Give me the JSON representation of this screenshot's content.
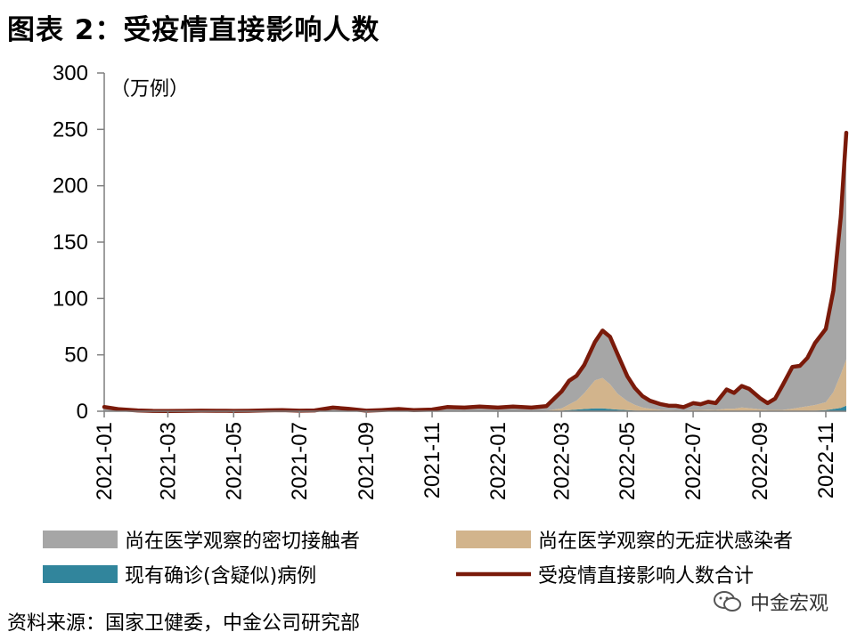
{
  "header": {
    "title": "图表 2：受疫情直接影响人数"
  },
  "footer": {
    "source": "资料来源：国家卫健委，中金公司研究部",
    "watermark": "中金宏观"
  },
  "colors": {
    "close_contacts": "#a6a6a6",
    "asymptomatic_observation": "#d2b48c",
    "confirmed": "#31859c",
    "total": "#7a1a0a"
  },
  "chart_data": {
    "type": "area",
    "unit_label": "（万例）",
    "ylim": [
      0,
      300
    ],
    "y_ticks": [
      0,
      50,
      100,
      150,
      200,
      250,
      300
    ],
    "x_ticks": [
      "2021-01",
      "2021-03",
      "2021-05",
      "2021-07",
      "2021-09",
      "2021-11",
      "2022-01",
      "2022-03",
      "2022-05",
      "2022-07",
      "2022-09",
      "2022-11"
    ],
    "x_range": [
      "2021-01-01",
      "2022-11-20"
    ],
    "x": [
      "2021-01-01",
      "2021-01-15",
      "2021-02-01",
      "2021-02-15",
      "2021-03-01",
      "2021-03-15",
      "2021-04-01",
      "2021-04-15",
      "2021-05-01",
      "2021-05-15",
      "2021-06-01",
      "2021-06-15",
      "2021-07-01",
      "2021-07-15",
      "2021-08-01",
      "2021-08-15",
      "2021-09-01",
      "2021-09-15",
      "2021-10-01",
      "2021-10-15",
      "2021-11-01",
      "2021-11-15",
      "2021-12-01",
      "2021-12-15",
      "2022-01-01",
      "2022-01-15",
      "2022-02-01",
      "2022-02-15",
      "2022-03-01",
      "2022-03-08",
      "2022-03-15",
      "2022-03-22",
      "2022-04-01",
      "2022-04-08",
      "2022-04-15",
      "2022-04-22",
      "2022-05-01",
      "2022-05-08",
      "2022-05-15",
      "2022-05-22",
      "2022-06-01",
      "2022-06-08",
      "2022-06-15",
      "2022-06-22",
      "2022-07-01",
      "2022-07-08",
      "2022-07-15",
      "2022-07-22",
      "2022-08-01",
      "2022-08-08",
      "2022-08-15",
      "2022-08-22",
      "2022-09-01",
      "2022-09-08",
      "2022-09-15",
      "2022-09-22",
      "2022-10-01",
      "2022-10-08",
      "2022-10-15",
      "2022-10-22",
      "2022-11-01",
      "2022-11-08",
      "2022-11-15",
      "2022-11-20"
    ],
    "series": [
      {
        "name": "尚在医学观察的密切接触者",
        "values": [
          3.5,
          1.5,
          0.5,
          0.3,
          0.2,
          0.3,
          0.5,
          0.4,
          0.3,
          0.4,
          0.8,
          1.0,
          0.5,
          0.7,
          3.0,
          2.0,
          0.5,
          1.0,
          2.0,
          1.0,
          1.5,
          3.5,
          3.0,
          4.0,
          3.0,
          4.0,
          3.0,
          4.0,
          15.0,
          21.0,
          22.0,
          25.0,
          34.0,
          42.0,
          42.0,
          35.0,
          22.0,
          15.0,
          10.0,
          7.0,
          5.0,
          4.0,
          4.0,
          3.0,
          6.0,
          5.0,
          7.0,
          6.0,
          17.0,
          14.0,
          19.0,
          17.0,
          10.0,
          6.0,
          10.0,
          22.0,
          37.0,
          37.0,
          43.0,
          55.0,
          65.0,
          90.0,
          140.0,
          201.0
        ]
      },
      {
        "name": "尚在医学观察的无症状感染者",
        "values": [
          0.1,
          0.1,
          0.1,
          0.0,
          0.0,
          0.0,
          0.0,
          0.0,
          0.0,
          0.0,
          0.0,
          0.0,
          0.0,
          0.0,
          0.1,
          0.1,
          0.0,
          0.0,
          0.0,
          0.0,
          0.0,
          0.1,
          0.1,
          0.1,
          0.1,
          0.1,
          0.1,
          0.3,
          2.0,
          5.0,
          8.0,
          14.0,
          25.0,
          27.0,
          22.0,
          14.0,
          8.0,
          5.0,
          3.0,
          2.0,
          1.0,
          0.8,
          0.6,
          0.5,
          1.0,
          1.0,
          1.2,
          1.0,
          2.0,
          2.0,
          3.0,
          2.5,
          1.5,
          1.0,
          1.0,
          1.0,
          2.0,
          3.0,
          4.0,
          5.0,
          7.0,
          15.0,
          30.0,
          41.0
        ]
      },
      {
        "name": "现有确诊(含疑似)病例",
        "values": [
          0.2,
          0.1,
          0.1,
          0.0,
          0.0,
          0.0,
          0.0,
          0.0,
          0.0,
          0.0,
          0.0,
          0.0,
          0.0,
          0.0,
          0.1,
          0.1,
          0.0,
          0.0,
          0.0,
          0.0,
          0.0,
          0.1,
          0.1,
          0.1,
          0.1,
          0.1,
          0.1,
          0.2,
          0.5,
          1.0,
          1.5,
          2.0,
          2.5,
          2.5,
          2.0,
          1.5,
          1.0,
          0.6,
          0.4,
          0.3,
          0.2,
          0.2,
          0.2,
          0.1,
          0.2,
          0.2,
          0.2,
          0.2,
          0.3,
          0.3,
          0.4,
          0.3,
          0.2,
          0.2,
          0.2,
          0.2,
          0.3,
          0.3,
          0.4,
          0.5,
          1.0,
          2.0,
          3.0,
          5.0
        ]
      },
      {
        "name": "受疫情直接影响人数合计",
        "kind": "line",
        "values": [
          3.8,
          1.7,
          0.7,
          0.3,
          0.2,
          0.3,
          0.5,
          0.4,
          0.3,
          0.4,
          0.8,
          1.0,
          0.5,
          0.7,
          3.2,
          2.2,
          0.5,
          1.0,
          2.0,
          1.0,
          1.5,
          3.7,
          3.2,
          4.2,
          3.2,
          4.2,
          3.2,
          4.5,
          17.5,
          27.0,
          31.5,
          41.0,
          61.5,
          71.5,
          66.0,
          50.5,
          31.0,
          20.6,
          13.4,
          9.3,
          6.2,
          5.0,
          4.8,
          3.6,
          7.2,
          6.2,
          8.4,
          7.2,
          19.3,
          16.3,
          22.4,
          19.8,
          11.7,
          7.2,
          11.2,
          23.2,
          39.3,
          40.3,
          47.4,
          60.5,
          73.0,
          107.0,
          173.0,
          247.0
        ]
      }
    ]
  }
}
